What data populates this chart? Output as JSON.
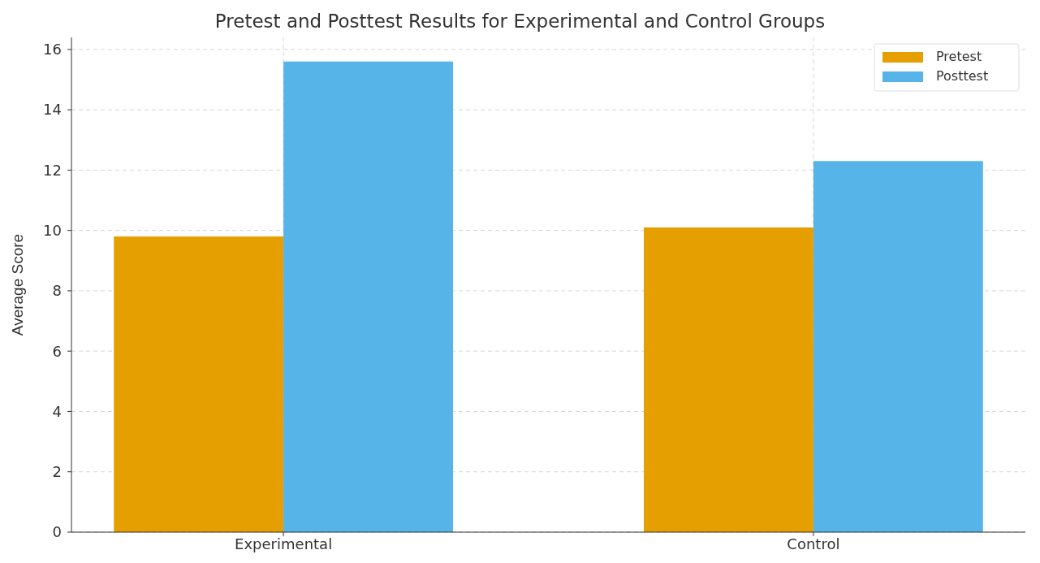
{
  "chart_data": {
    "type": "bar",
    "title": "Pretest and Posttest Results for Experimental and Control Groups",
    "ylabel": "Average Score",
    "categories": [
      "Experimental",
      "Control"
    ],
    "series": [
      {
        "name": "Pretest",
        "color": "#e69f00",
        "values": [
          9.8,
          10.1
        ]
      },
      {
        "name": "Posttest",
        "color": "#56b4e9",
        "values": [
          15.6,
          12.3
        ]
      }
    ],
    "ylim": [
      0,
      16.4
    ],
    "yticks": [
      0,
      2,
      4,
      6,
      8,
      10,
      12,
      14,
      16
    ],
    "grid": true,
    "legend": "top right"
  }
}
